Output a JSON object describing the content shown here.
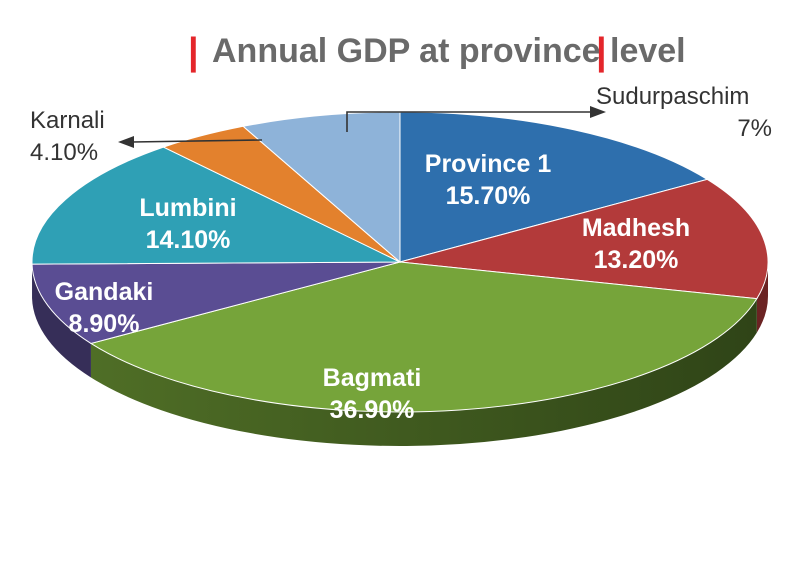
{
  "chart_data": {
    "type": "pie",
    "title": "Annual GDP at province level",
    "unit": "%",
    "slices": [
      {
        "key": "province1",
        "name": "Province 1",
        "value": 15.7,
        "label": "15.70%",
        "color": "#2e6fad"
      },
      {
        "key": "madhesh",
        "name": "Madhesh",
        "value": 13.2,
        "label": "13.20%",
        "color": "#b33a3a"
      },
      {
        "key": "bagmati",
        "name": "Bagmati",
        "value": 36.9,
        "label": "36.90%",
        "color": "#76a43a"
      },
      {
        "key": "gandaki",
        "name": "Gandaki",
        "value": 8.9,
        "label": "8.90%",
        "color": "#5a4d93"
      },
      {
        "key": "lumbini",
        "name": "Lumbini",
        "value": 14.1,
        "label": "14.10%",
        "color": "#2fa0b5"
      },
      {
        "key": "karnali",
        "name": "Karnali",
        "value": 4.1,
        "label": "4.10%",
        "color": "#e3812d"
      },
      {
        "key": "sudurpaschim",
        "name": "Sudurpaschim",
        "value": 7,
        "label": "7%",
        "color": "#8eb3d9"
      }
    ],
    "legend": "none"
  }
}
